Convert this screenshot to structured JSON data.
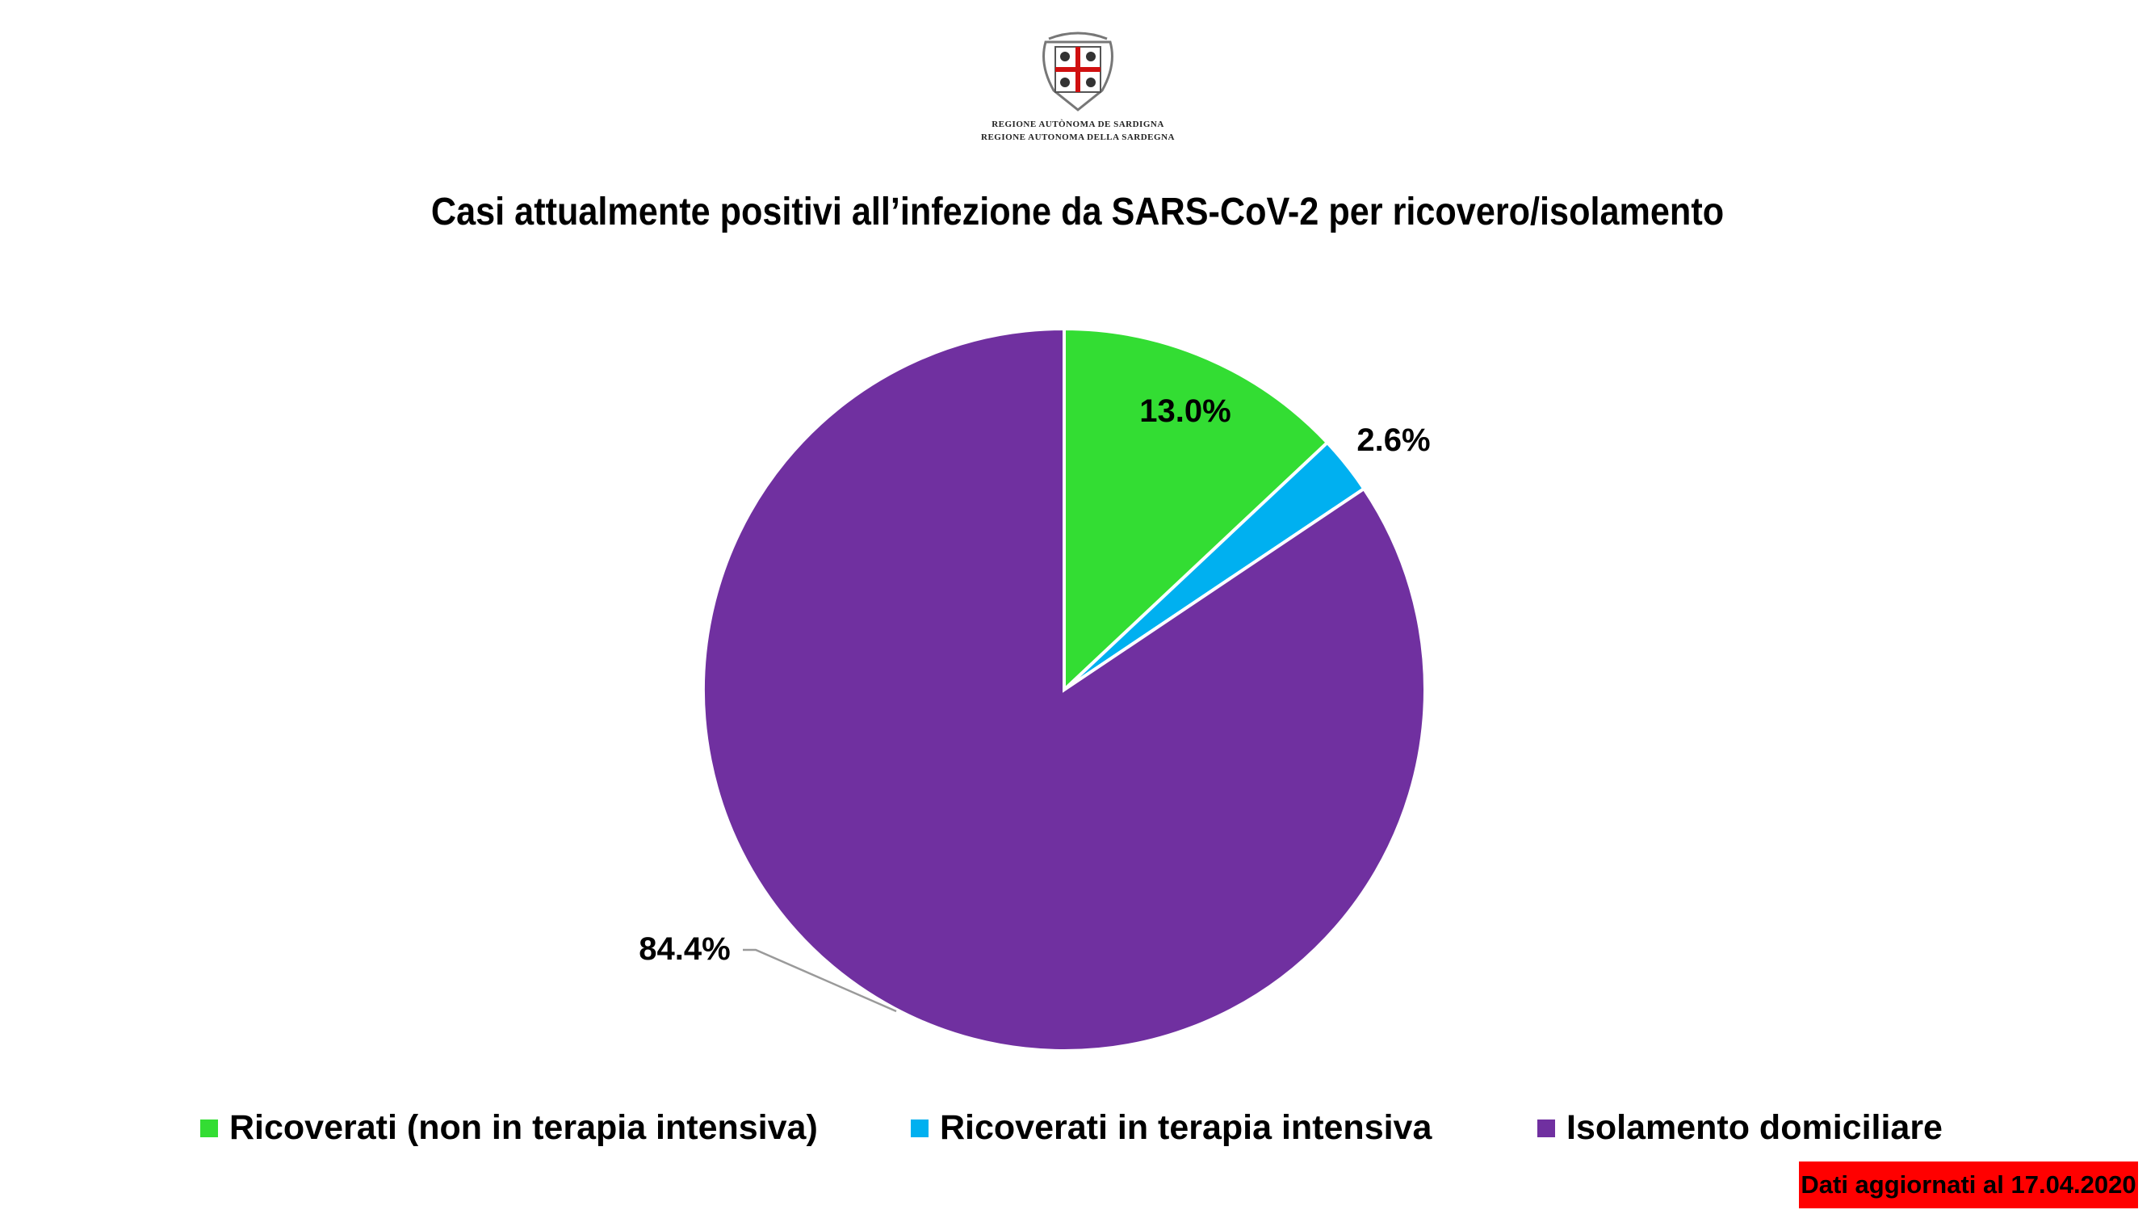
{
  "logo": {
    "lines": [
      "REGIONE AUTÒNOMA DE SARDIGNA",
      "REGIONE AUTONOMA DELLA SARDEGNA"
    ]
  },
  "chart_data": {
    "type": "pie",
    "title": "Casi attualmente positivi all’infezione da SARS-CoV-2 per ricovero/isolamento",
    "slices": [
      {
        "name": "Ricoverati (non in terapia intensiva)",
        "value": 13.0,
        "label": "13.0%",
        "color": "#33dd33"
      },
      {
        "name": "Ricoverati in terapia intensiva",
        "value": 2.6,
        "label": "2.6%",
        "color": "#00b0f0"
      },
      {
        "name": "Isolamento domiciliare",
        "value": 84.4,
        "label": "84.4%",
        "color": "#7030a0"
      }
    ],
    "start_angle": "12 o'clock",
    "direction": "clockwise",
    "legend": "bottom"
  },
  "footer": {
    "updated": "Dati aggiornati al 17.04.2020",
    "badge_color": "#ff0000"
  }
}
